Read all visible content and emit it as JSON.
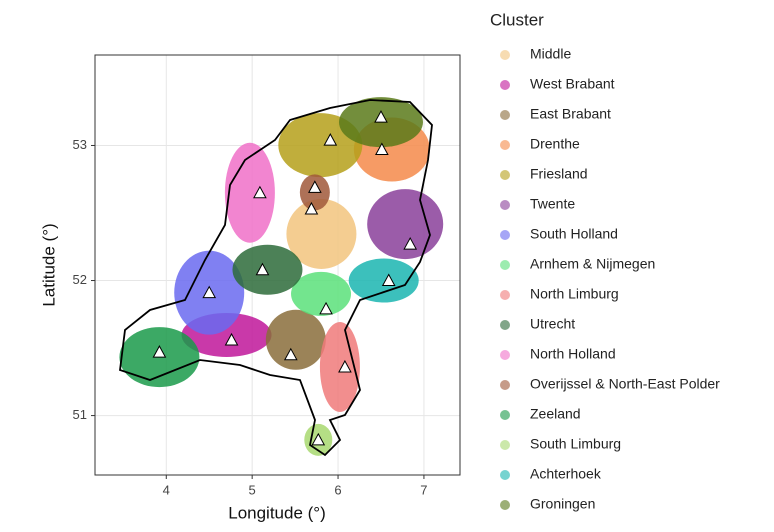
{
  "chart_data": {
    "type": "scatter",
    "x_label": "Longitude (°)",
    "y_label": "Latitude (°)",
    "legend_title": "Cluster",
    "xlim": [
      3.17,
      7.42
    ],
    "ylim": [
      50.56,
      53.67
    ],
    "xticks": [
      4,
      5,
      6,
      7
    ],
    "yticks": [
      51,
      52,
      53
    ],
    "grid": true,
    "series": [
      {
        "name": "Middle",
        "color": "#f2c47e",
        "x": [
          5.69
        ],
        "values": [
          52.53
        ]
      },
      {
        "name": "West Brabant",
        "color": "#c0169a",
        "x": [
          4.76
        ],
        "values": [
          51.56
        ]
      },
      {
        "name": "East Brabant",
        "color": "#8a6d3b",
        "x": [
          5.45
        ],
        "values": [
          51.45
        ]
      },
      {
        "name": "Drenthe",
        "color": "#f58a4a",
        "x": [
          6.51
        ],
        "values": [
          52.97
        ]
      },
      {
        "name": "Friesland",
        "color": "#b5a01a",
        "x": [
          5.91
        ],
        "values": [
          53.04
        ]
      },
      {
        "name": "Twente",
        "color": "#8a3f9a",
        "x": [
          6.84
        ],
        "values": [
          52.27
        ]
      },
      {
        "name": "South Holland",
        "color": "#6a6af0",
        "x": [
          4.5
        ],
        "values": [
          51.91
        ]
      },
      {
        "name": "Arnhem & Nijmegen",
        "color": "#5ae07a",
        "x": [
          5.86
        ],
        "values": [
          51.79
        ]
      },
      {
        "name": "North Limburg",
        "color": "#f07a7a",
        "x": [
          6.08
        ],
        "values": [
          51.36
        ]
      },
      {
        "name": "Utrecht",
        "color": "#2d6b3a",
        "x": [
          5.12
        ],
        "values": [
          52.08
        ]
      },
      {
        "name": "North Holland",
        "color": "#f070c8",
        "x": [
          5.09
        ],
        "values": [
          52.65
        ]
      },
      {
        "name": "Overijssel & North-East Polder",
        "color": "#a0583a",
        "x": [
          5.73
        ],
        "values": [
          52.69
        ]
      },
      {
        "name": "Zeeland",
        "color": "#1a9a4a",
        "x": [
          3.92
        ],
        "values": [
          51.47
        ]
      },
      {
        "name": "South Limburg",
        "color": "#a8d870",
        "x": [
          5.77
        ],
        "values": [
          50.82
        ]
      },
      {
        "name": "Achterhoek",
        "color": "#1ab5b0",
        "x": [
          6.59
        ],
        "values": [
          52.0
        ]
      },
      {
        "name": "Groningen",
        "color": "#5a7a1a",
        "x": [
          6.5
        ],
        "values": [
          53.21
        ]
      }
    ]
  }
}
